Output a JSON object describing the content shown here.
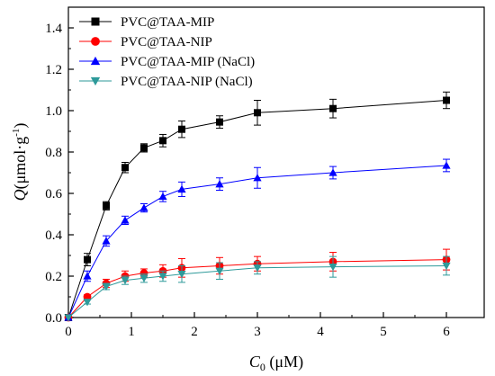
{
  "chart_data": {
    "type": "line",
    "xlabel": {
      "main": "C",
      "sub": "0",
      "unit": " (μM)"
    },
    "ylabel": {
      "main": "Q",
      "unit": "(μmol·g",
      "sup": "-1",
      "close": ")"
    },
    "xlim": [
      0,
      6.6
    ],
    "ylim": [
      0,
      1.5
    ],
    "xticks": [
      0,
      1,
      2,
      3,
      4,
      5,
      6
    ],
    "yticks": [
      0.0,
      0.2,
      0.4,
      0.6,
      0.8,
      1.0,
      1.2,
      1.4
    ],
    "ytick_labels": [
      "0.0",
      "0.2",
      "0.4",
      "0.6",
      "0.8",
      "1.0",
      "1.2",
      "1.4"
    ],
    "legend_position": "top-left",
    "grid": false,
    "series": [
      {
        "name": "PVC@TAA-MIP",
        "color": "#000000",
        "marker": "square",
        "x": [
          0,
          0.3,
          0.6,
          0.9,
          1.2,
          1.5,
          1.8,
          2.4,
          3.0,
          4.2,
          6.0
        ],
        "y": [
          0,
          0.28,
          0.54,
          0.725,
          0.82,
          0.855,
          0.91,
          0.945,
          0.99,
          1.01,
          1.05
        ],
        "err": [
          0,
          0.03,
          0.02,
          0.025,
          0.02,
          0.03,
          0.04,
          0.03,
          0.06,
          0.045,
          0.04
        ]
      },
      {
        "name": "PVC@TAA-NIP",
        "color": "#ff0000",
        "marker": "circle",
        "x": [
          0,
          0.3,
          0.6,
          0.9,
          1.2,
          1.5,
          1.8,
          2.4,
          3.0,
          4.2,
          6.0
        ],
        "y": [
          0,
          0.1,
          0.165,
          0.2,
          0.215,
          0.225,
          0.24,
          0.25,
          0.26,
          0.27,
          0.28
        ],
        "err": [
          0,
          0.01,
          0.02,
          0.025,
          0.02,
          0.03,
          0.045,
          0.04,
          0.035,
          0.045,
          0.05
        ]
      },
      {
        "name": "PVC@TAA-MIP (NaCl)",
        "color": "#0000ff",
        "marker": "triangle-up",
        "x": [
          0,
          0.3,
          0.6,
          0.9,
          1.2,
          1.5,
          1.8,
          2.4,
          3.0,
          4.2,
          6.0
        ],
        "y": [
          0,
          0.2,
          0.37,
          0.47,
          0.53,
          0.585,
          0.62,
          0.645,
          0.675,
          0.7,
          0.735
        ],
        "err": [
          0,
          0.025,
          0.025,
          0.02,
          0.02,
          0.025,
          0.035,
          0.03,
          0.05,
          0.03,
          0.03
        ]
      },
      {
        "name": "PVC@TAA-NIP (NaCl)",
        "color": "#2e9a9a",
        "marker": "triangle-down",
        "x": [
          0,
          0.3,
          0.6,
          0.9,
          1.2,
          1.5,
          1.8,
          2.4,
          3.0,
          4.2,
          6.0
        ],
        "y": [
          0,
          0.075,
          0.15,
          0.18,
          0.19,
          0.2,
          0.21,
          0.225,
          0.24,
          0.245,
          0.25
        ],
        "err": [
          0,
          0.01,
          0.015,
          0.02,
          0.02,
          0.025,
          0.04,
          0.04,
          0.03,
          0.05,
          0.045
        ]
      }
    ]
  }
}
